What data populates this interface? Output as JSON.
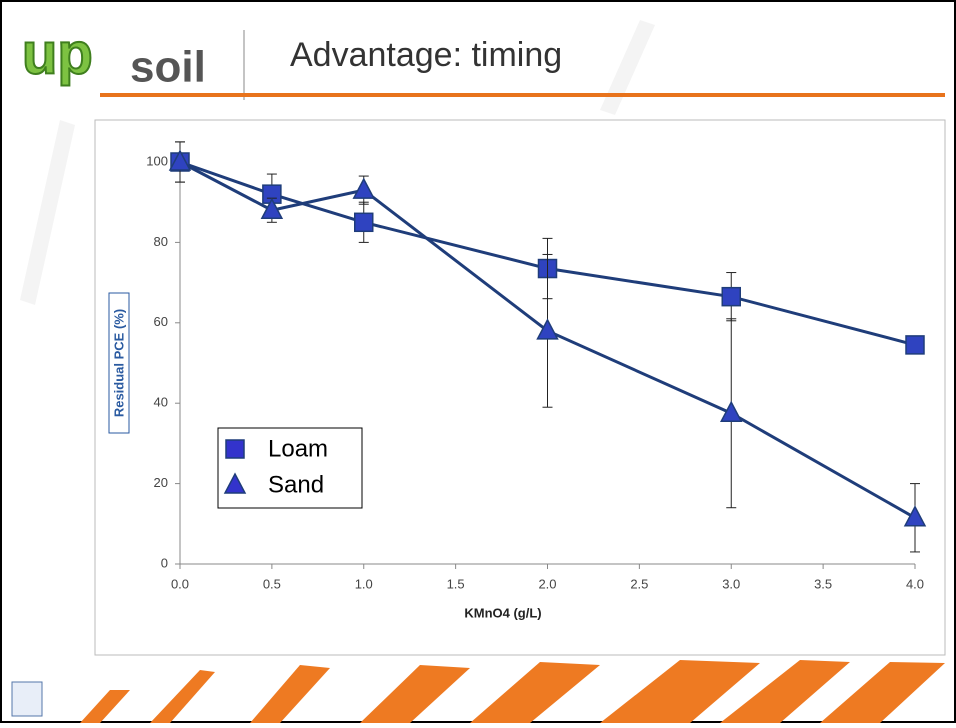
{
  "logo": {
    "up": "up",
    "soil": "soil"
  },
  "chart_data": {
    "type": "line",
    "title": "Advantage: timing",
    "x_label": "KMnO4 (g/L)",
    "y_label": "Residual PCE (%)",
    "x": [
      0,
      0.5,
      1,
      2,
      3,
      4
    ],
    "series": [
      {
        "name": "Loam",
        "color": "#2f43c0",
        "line_color": "#1f3d7a",
        "marker": "square",
        "values": [
          100,
          92,
          85,
          73.5,
          66.5,
          54.5
        ],
        "errors": [
          5,
          5,
          5,
          7.5,
          6,
          2
        ]
      },
      {
        "name": "Sand",
        "color": "#2f43c0",
        "line_color": "#1f3d7a",
        "marker": "triangle",
        "values": [
          100,
          88,
          93,
          58,
          37.5,
          11.5
        ],
        "errors": [
          5,
          3,
          3.5,
          19,
          23.5,
          8.5
        ]
      }
    ],
    "xlim": [
      0,
      4
    ],
    "ylim": [
      0,
      100
    ],
    "xticks": [
      {
        "value": 0,
        "label": "0.0"
      },
      0.5,
      {
        "value": 1,
        "label": "1.0"
      },
      1.5,
      {
        "value": 2,
        "label": "2.0"
      },
      2.5,
      {
        "value": 3,
        "label": "3.0"
      },
      3.5,
      {
        "value": 4,
        "label": "4.0"
      }
    ],
    "yticks": [
      0,
      20,
      40,
      60,
      80,
      100
    ],
    "grid": false,
    "legend_loc": "lower left"
  }
}
